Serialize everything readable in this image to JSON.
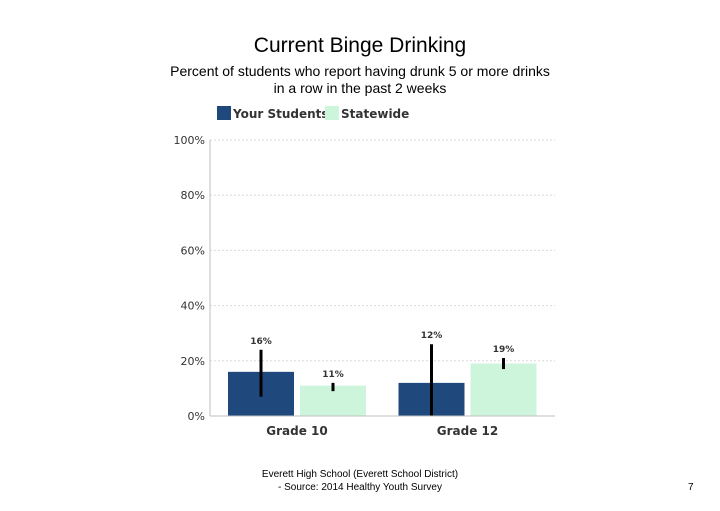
{
  "page": {
    "title": "Current Binge Drinking",
    "subtitle_line1": "Percent of students who report having drunk 5 or more drinks",
    "subtitle_line2": "in a row in the past 2 weeks",
    "footer_line1": "Everett High School (Everett School District)",
    "footer_line2": "- Source: 2014 Healthy Youth Survey",
    "page_number": "7"
  },
  "chart_data": {
    "type": "bar",
    "categories": [
      "Grade 10",
      "Grade 12"
    ],
    "series": [
      {
        "name": "Your Students",
        "color": "#1f487c",
        "values": [
          16,
          12
        ],
        "labels": [
          "16%",
          "12%"
        ],
        "error": [
          [
            7,
            24
          ],
          [
            0,
            26
          ]
        ]
      },
      {
        "name": "Statewide",
        "color": "#ccf5dc",
        "values": [
          11,
          19
        ],
        "labels": [
          "11%",
          "19%"
        ],
        "error": [
          [
            9,
            12
          ],
          [
            17,
            21
          ]
        ]
      }
    ],
    "ylim": [
      0,
      100
    ],
    "yticks": [
      0,
      20,
      40,
      60,
      80,
      100
    ],
    "ytick_labels": [
      "0%",
      "20%",
      "40%",
      "60%",
      "80%",
      "100%"
    ],
    "grid": true,
    "legend": "top-left"
  }
}
